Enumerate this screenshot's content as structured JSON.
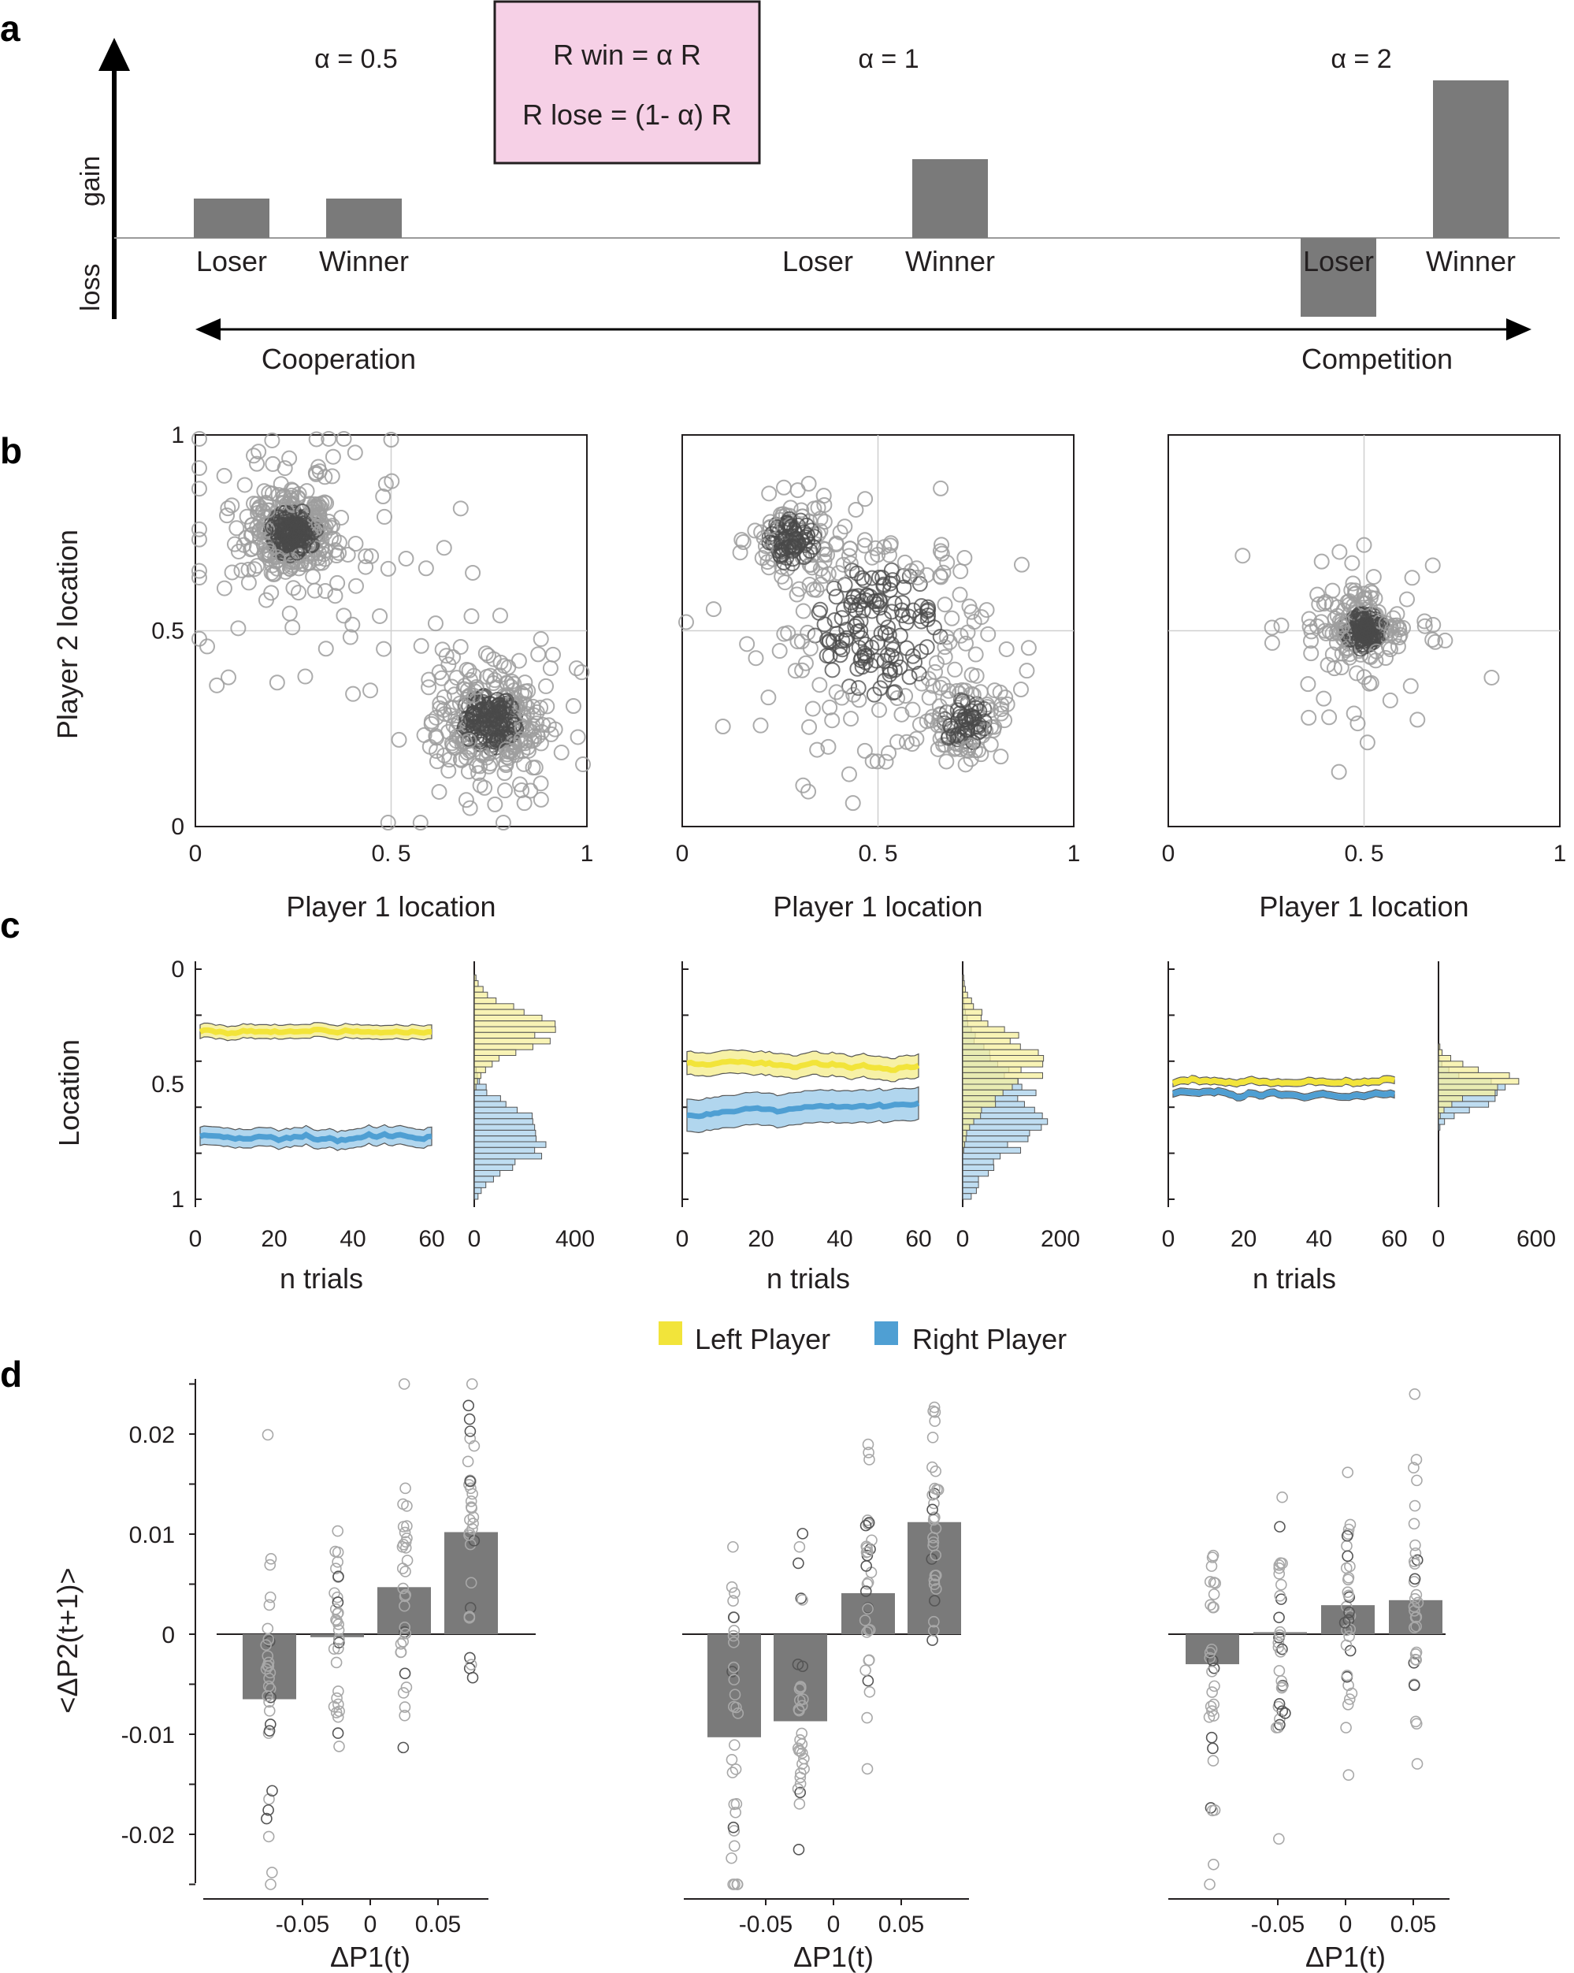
{
  "panel_labels": [
    "a",
    "b",
    "c",
    "d"
  ],
  "colors": {
    "bar": "#7a7a7a",
    "left_player": "#f2e43a",
    "left_band": "#f6ef9c",
    "right_player": "#4f9fd3",
    "right_band": "#a9d1ec",
    "formula_box": "#f6d0e6",
    "scatter_dark": "#4a4a4a",
    "scatter_light": "#9e9e9e"
  },
  "panel_a": {
    "axis_gain": "gain",
    "axis_loss": "loss",
    "formula_line1": "R win = α R",
    "formula_line2": "R lose = (1- α) R",
    "cooperation": "Cooperation",
    "competition": "Competition",
    "groups": [
      {
        "alpha_label": "α = 0.5",
        "loser_label": "Loser",
        "winner_label": "Winner",
        "loser_value": 0.5,
        "winner_value": 0.5
      },
      {
        "alpha_label": "α = 1",
        "loser_label": "Loser",
        "winner_label": "Winner",
        "loser_value": 0.0,
        "winner_value": 1.0
      },
      {
        "alpha_label": "α = 2",
        "loser_label": "Loser",
        "winner_label": "Winner",
        "loser_value": -1.0,
        "winner_value": 2.0
      }
    ]
  },
  "panel_b": {
    "ylabel": "Player 2 location",
    "xlabel": "Player 1 location",
    "ticks": [
      "0",
      "0.5",
      "1"
    ],
    "xticks": [
      "0",
      "0. 5",
      "1"
    ]
  },
  "panel_c": {
    "ylabel": "Location",
    "xlabel": "n trials",
    "yticks": [
      "0",
      "0.5",
      "1"
    ],
    "trial_ticks": [
      "0",
      "20",
      "40",
      "60"
    ],
    "hist_ticks": [
      [
        "0",
        "400"
      ],
      [
        "0",
        "200"
      ],
      [
        "0",
        "600"
      ]
    ],
    "legend": {
      "left": "Left Player",
      "right": "Right Player"
    }
  },
  "panel_d": {
    "ylabel": "<ΔP2(t+1)>",
    "xlabel": "ΔP1(t)",
    "yticks": [
      "0.02",
      "0.01",
      "0",
      "-0.01",
      "-0.02"
    ],
    "xticks": [
      "-0.05",
      "0",
      "0.05"
    ]
  },
  "chart_data": [
    {
      "type": "bar",
      "panel": "a",
      "title": "",
      "categories": [
        "Loser",
        "Winner"
      ],
      "series": [
        {
          "name": "α = 0.5",
          "values": [
            0.5,
            0.5
          ]
        },
        {
          "name": "α = 1",
          "values": [
            0.0,
            1.0
          ]
        },
        {
          "name": "α = 2",
          "values": [
            -1.0,
            2.0
          ]
        }
      ],
      "ylabel": "gain / loss"
    },
    {
      "type": "scatter",
      "panel": "b",
      "xlabel": "Player 1 location",
      "ylabel": "Player 2 location",
      "xlim": [
        0,
        1
      ],
      "ylim": [
        0,
        1
      ],
      "grid": "lines at 0.5",
      "clusters": [
        [
          {
            "x": 0.25,
            "y": 0.75,
            "spread": 0.05
          },
          {
            "x": 0.75,
            "y": 0.27,
            "spread": 0.06
          }
        ],
        [
          {
            "x": 0.5,
            "y": 0.5,
            "spread": 0.14
          },
          {
            "x": 0.28,
            "y": 0.73,
            "spread": 0.05
          },
          {
            "x": 0.72,
            "y": 0.27,
            "spread": 0.05
          }
        ],
        [
          {
            "x": 0.5,
            "y": 0.5,
            "spread": 0.04
          }
        ]
      ]
    },
    {
      "type": "line",
      "panel": "c",
      "xlabel": "n trials",
      "ylabel": "Location",
      "xlim": [
        0,
        60
      ],
      "ylim": [
        0,
        1
      ],
      "series_names": [
        "Left Player",
        "Right Player"
      ],
      "means": [
        {
          "left": 0.27,
          "right": 0.73
        },
        {
          "left": 0.41,
          "right": 0.63
        },
        {
          "left": 0.49,
          "right": 0.54
        }
      ],
      "band_halfwidth": [
        {
          "left": 0.03,
          "right": 0.04
        },
        {
          "left": 0.05,
          "right": 0.07
        },
        {
          "left": 0.015,
          "right": 0.015
        }
      ]
    },
    {
      "type": "bar",
      "panel": "d",
      "xlabel": "ΔP1(t)",
      "ylabel": "<ΔP2(t+1)>",
      "ylim": [
        -0.025,
        0.025
      ],
      "categories": [
        "-0.075",
        "-0.025",
        "0.025",
        "0.075"
      ],
      "series": [
        {
          "name": "α = 0.5",
          "values": [
            -0.0065,
            -0.0003,
            0.0047,
            0.0102
          ]
        },
        {
          "name": "α = 1",
          "values": [
            -0.0103,
            -0.0087,
            0.0041,
            0.0112
          ]
        },
        {
          "name": "α = 2",
          "values": [
            -0.003,
            0.0002,
            0.0029,
            0.0034
          ]
        }
      ]
    }
  ]
}
